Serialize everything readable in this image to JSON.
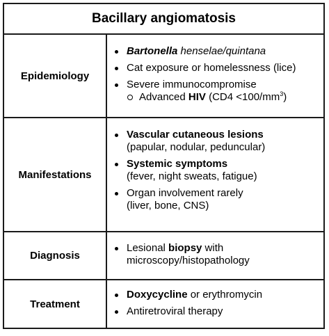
{
  "title": "Bacillary angiomatosis",
  "sections": [
    {
      "label": "Epidemiology",
      "items": [
        {
          "parts": [
            {
              "text": "Bartonella",
              "style": "bi"
            },
            {
              "text": " ",
              "style": ""
            },
            {
              "text": "henselae/quintana",
              "style": "i"
            }
          ]
        },
        {
          "parts": [
            {
              "text": "Cat exposure or homelessness (lice)",
              "style": ""
            }
          ]
        },
        {
          "parts": [
            {
              "text": "Severe immunocompromise",
              "style": ""
            }
          ],
          "sub": [
            {
              "text": "Advanced ",
              "style": ""
            },
            {
              "text": "HIV",
              "style": "b"
            },
            {
              "text": " (CD4 <100/mm",
              "style": ""
            },
            {
              "text": "3",
              "style": "sup"
            },
            {
              "text": ")",
              "style": ""
            }
          ]
        }
      ]
    },
    {
      "label": "Manifestations",
      "items": [
        {
          "parts": [
            {
              "text": "Vascular cutaneous lesions",
              "style": "b"
            }
          ],
          "line2": "(papular, nodular, peduncular)"
        },
        {
          "parts": [
            {
              "text": "Systemic symptoms",
              "style": "b"
            }
          ],
          "line2": "(fever, night sweats, fatigue)"
        },
        {
          "parts": [
            {
              "text": "Organ involvement rarely",
              "style": ""
            }
          ],
          "line2": "(liver, bone, CNS)"
        }
      ]
    },
    {
      "label": "Diagnosis",
      "items": [
        {
          "parts": [
            {
              "text": "Lesional ",
              "style": ""
            },
            {
              "text": "biopsy",
              "style": "b"
            },
            {
              "text": " with",
              "style": ""
            }
          ],
          "line2": "microscopy/histopathology"
        }
      ]
    },
    {
      "label": "Treatment",
      "items": [
        {
          "parts": [
            {
              "text": "Doxycycline",
              "style": "b"
            },
            {
              "text": " or erythromycin",
              "style": ""
            }
          ]
        },
        {
          "parts": [
            {
              "text": "Antiretroviral therapy",
              "style": ""
            }
          ]
        }
      ]
    }
  ]
}
